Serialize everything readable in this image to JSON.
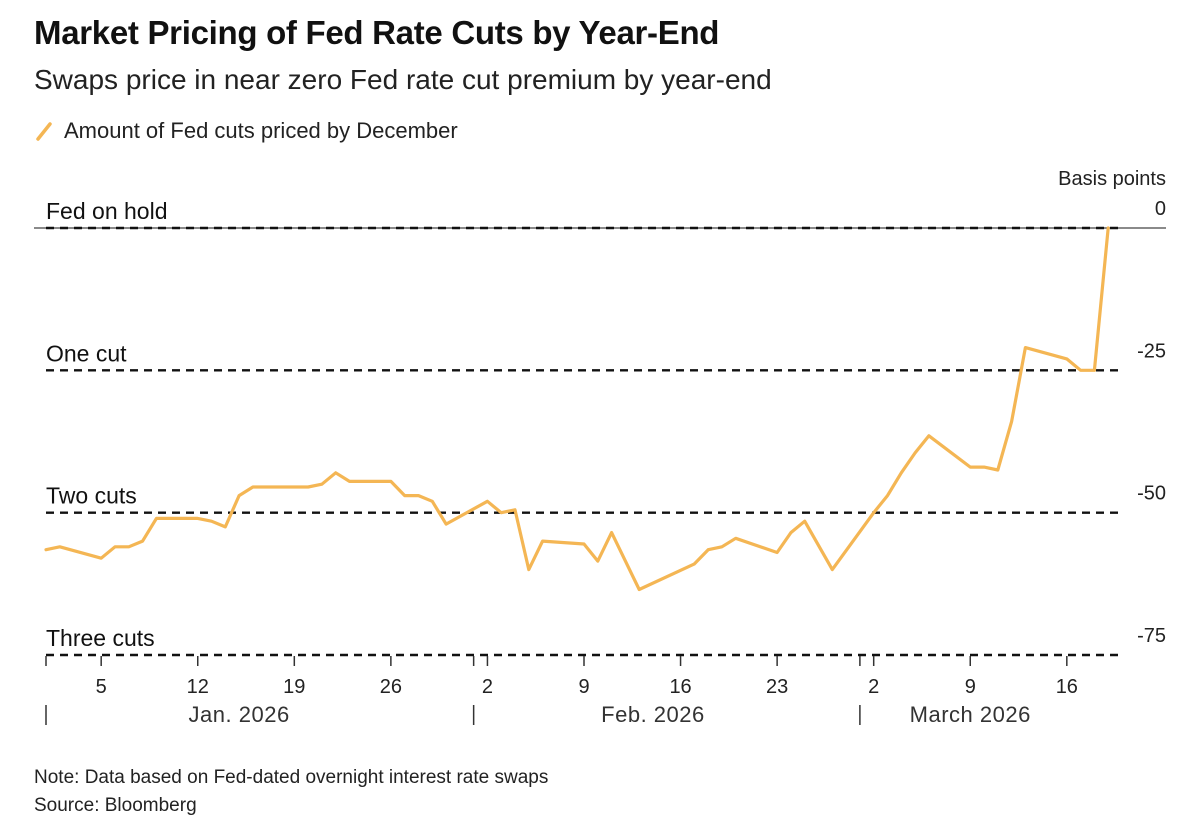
{
  "title": "Market Pricing of Fed Rate Cuts by Year-End",
  "subtitle": "Swaps price in near zero Fed rate cut premium by year-end",
  "legend_label": "Amount of Fed cuts priced by December",
  "y_unit_label": "Basis points",
  "note": "Note: Data based on Fed-dated overnight interest rate swaps",
  "source": "Source: Bloomberg",
  "colors": {
    "line": "#F4B654",
    "dashed": "#111111",
    "baseline": "#444444"
  },
  "reference_lines": [
    {
      "label": "Fed on hold",
      "value": 0
    },
    {
      "label": "One cut",
      "value": -25
    },
    {
      "label": "Two cuts",
      "value": -50
    },
    {
      "label": "Three cuts",
      "value": -75
    }
  ],
  "y_ticks": [
    {
      "label": "0",
      "value": 0
    },
    {
      "label": "-25",
      "value": -25
    },
    {
      "label": "-50",
      "value": -50
    },
    {
      "label": "-75",
      "value": -75
    }
  ],
  "x_ticks": [
    {
      "label": "5",
      "date": "2026-01-05"
    },
    {
      "label": "12",
      "date": "2026-01-12"
    },
    {
      "label": "19",
      "date": "2026-01-19"
    },
    {
      "label": "26",
      "date": "2026-01-26"
    },
    {
      "label": "2",
      "date": "2026-02-02"
    },
    {
      "label": "9",
      "date": "2026-02-09"
    },
    {
      "label": "16",
      "date": "2026-02-16"
    },
    {
      "label": "23",
      "date": "2026-02-23"
    },
    {
      "label": "2",
      "date": "2026-03-02"
    },
    {
      "label": "9",
      "date": "2026-03-09"
    },
    {
      "label": "16",
      "date": "2026-03-16"
    }
  ],
  "month_labels": [
    {
      "label": "Jan. 2026",
      "date": "2026-01-15"
    },
    {
      "label": "Feb. 2026",
      "date": "2026-02-14"
    },
    {
      "label": "March 2026",
      "date": "2026-03-09"
    }
  ],
  "month_dividers": [
    "2026-01-01",
    "2026-02-01",
    "2026-03-01"
  ],
  "chart_data": {
    "type": "line",
    "xlim": [
      "2026-01-01",
      "2026-03-20"
    ],
    "ylim": [
      -75,
      0
    ],
    "series": [
      {
        "name": "Amount of Fed cuts priced by December",
        "x": [
          "2026-01-01",
          "2026-01-02",
          "2026-01-05",
          "2026-01-06",
          "2026-01-07",
          "2026-01-08",
          "2026-01-09",
          "2026-01-12",
          "2026-01-13",
          "2026-01-14",
          "2026-01-15",
          "2026-01-16",
          "2026-01-20",
          "2026-01-21",
          "2026-01-22",
          "2026-01-23",
          "2026-01-26",
          "2026-01-27",
          "2026-01-28",
          "2026-01-29",
          "2026-01-30",
          "2026-02-02",
          "2026-02-03",
          "2026-02-04",
          "2026-02-05",
          "2026-02-06",
          "2026-02-09",
          "2026-02-10",
          "2026-02-11",
          "2026-02-13",
          "2026-02-17",
          "2026-02-18",
          "2026-02-19",
          "2026-02-20",
          "2026-02-23",
          "2026-02-24",
          "2026-02-25",
          "2026-02-27",
          "2026-03-02",
          "2026-03-03",
          "2026-03-04",
          "2026-03-05",
          "2026-03-06",
          "2026-03-09",
          "2026-03-10",
          "2026-03-11",
          "2026-03-12",
          "2026-03-13",
          "2026-03-16",
          "2026-03-17",
          "2026-03-18",
          "2026-03-19"
        ],
        "values": [
          -56.5,
          -56,
          -58,
          -56,
          -56,
          -55,
          -51,
          -51,
          -51.5,
          -52.5,
          -47,
          -45.5,
          -45.5,
          -45,
          -43,
          -44.5,
          -44.5,
          -47,
          -47,
          -48,
          -52,
          -48,
          -50,
          -49.5,
          -60,
          -55,
          -55.5,
          -58.5,
          -53.5,
          -63.5,
          -59,
          -56.5,
          -56,
          -54.5,
          -57,
          -53.5,
          -51.5,
          -60,
          -50,
          -47,
          -43,
          -39.5,
          -36.5,
          -42,
          -42,
          -42.5,
          -34,
          -21,
          -23,
          -25,
          -25,
          0
        ]
      }
    ]
  }
}
